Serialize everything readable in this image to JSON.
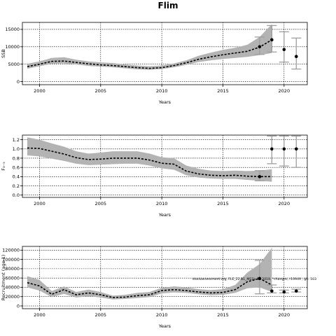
{
  "title": "Flim",
  "note": "stockassessment.org, FLE_22.B1_MS1b-R1 2019, *changes, r10949 , git: 503",
  "chart_data": [
    {
      "type": "line",
      "title": "",
      "xlabel": "Years",
      "ylabel": "SSB",
      "xlim": [
        1998.6,
        2021.9
      ],
      "ylim": [
        -900,
        17000
      ],
      "xticks": [
        2000,
        2005,
        2010,
        2015,
        2020
      ],
      "yticks": [
        0,
        5000,
        10000,
        15000
      ],
      "ytick_labels": [
        "0",
        "5000",
        "10000",
        "15000"
      ],
      "grid": true,
      "x": [
        1999,
        2000,
        2001,
        2002,
        2003,
        2004,
        2005,
        2006,
        2007,
        2008,
        2009,
        2010,
        2011,
        2012,
        2013,
        2014,
        2015,
        2016,
        2017,
        2018,
        2019
      ],
      "estimate": [
        4300,
        5000,
        5800,
        5900,
        5500,
        5100,
        4800,
        4600,
        4300,
        4000,
        3800,
        4000,
        4600,
        5400,
        6400,
        7100,
        7700,
        8200,
        8700,
        9900,
        12000
      ],
      "lower": [
        3700,
        4400,
        5100,
        5200,
        4900,
        4500,
        4300,
        4100,
        3800,
        3500,
        3400,
        3600,
        4100,
        4800,
        5600,
        6100,
        6500,
        6800,
        7100,
        7600,
        8200
      ],
      "upper": [
        5100,
        5800,
        6800,
        7000,
        6300,
        5800,
        5500,
        5300,
        4900,
        4600,
        4400,
        4600,
        5200,
        6100,
        7400,
        8300,
        9100,
        9700,
        10600,
        12800,
        16500
      ],
      "points": [
        {
          "x": 2018,
          "y": 10000,
          "lo": 7800,
          "hi": 12800
        },
        {
          "x": 2019,
          "y": 12000,
          "lo": 8500,
          "hi": 16100
        },
        {
          "x": 2020,
          "y": 9200,
          "lo": 5600,
          "hi": 14300
        },
        {
          "x": 2021,
          "y": 7200,
          "lo": 3600,
          "hi": 12500
        }
      ]
    },
    {
      "type": "line",
      "title": "",
      "xlabel": "Years",
      "ylabel": "F₃₋₅",
      "xlim": [
        1998.6,
        2021.9
      ],
      "ylim": [
        -0.05,
        1.3
      ],
      "xticks": [
        2000,
        2005,
        2010,
        2015,
        2020
      ],
      "yticks": [
        0.0,
        0.2,
        0.4,
        0.6,
        0.8,
        1.0,
        1.2
      ],
      "ytick_labels": [
        "0.0",
        "0.2",
        "0.4",
        "0.6",
        "0.8",
        "1.0",
        "1.2"
      ],
      "grid": true,
      "x": [
        1999,
        2000,
        2001,
        2002,
        2003,
        2004,
        2005,
        2006,
        2007,
        2008,
        2009,
        2010,
        2011,
        2012,
        2013,
        2014,
        2015,
        2016,
        2017,
        2018,
        2019
      ],
      "estimate": [
        1.02,
        1.01,
        0.95,
        0.89,
        0.81,
        0.77,
        0.78,
        0.8,
        0.8,
        0.8,
        0.76,
        0.69,
        0.67,
        0.52,
        0.46,
        0.43,
        0.42,
        0.43,
        0.41,
        0.4,
        0.4
      ],
      "lower": [
        0.86,
        0.84,
        0.79,
        0.74,
        0.68,
        0.65,
        0.66,
        0.67,
        0.68,
        0.68,
        0.64,
        0.58,
        0.55,
        0.43,
        0.38,
        0.36,
        0.35,
        0.35,
        0.33,
        0.31,
        0.29
      ],
      "upper": [
        1.25,
        1.2,
        1.12,
        1.05,
        0.95,
        0.9,
        0.92,
        0.95,
        0.95,
        0.95,
        0.9,
        0.82,
        0.8,
        0.64,
        0.57,
        0.53,
        0.52,
        0.53,
        0.52,
        0.53,
        0.56
      ],
      "points": [
        {
          "x": 2018,
          "y": 0.4,
          "lo": 0.31,
          "hi": 0.53
        },
        {
          "x": 2019,
          "y": 1.0,
          "lo": 0.68,
          "hi": 1.28
        },
        {
          "x": 2020,
          "y": 1.0,
          "lo": 0.63,
          "hi": 1.28
        },
        {
          "x": 2021,
          "y": 1.0,
          "lo": 0.6,
          "hi": 1.28
        }
      ]
    },
    {
      "type": "line",
      "title": "",
      "xlabel": "Years",
      "ylabel": "Recruitment (age 1)",
      "xlim": [
        1998.6,
        2021.9
      ],
      "ylim": [
        -6000,
        128000
      ],
      "xticks": [
        2000,
        2005,
        2010,
        2015,
        2020
      ],
      "yticks": [
        0,
        20000,
        40000,
        60000,
        80000,
        100000,
        120000
      ],
      "ytick_labels": [
        "0",
        "20000",
        "40000",
        "60000",
        "80000",
        "100000",
        "120000"
      ],
      "grid": true,
      "x": [
        1999,
        2000,
        2001,
        2002,
        2003,
        2004,
        2005,
        2006,
        2007,
        2008,
        2009,
        2010,
        2011,
        2012,
        2013,
        2014,
        2015,
        2016,
        2017,
        2018,
        2019
      ],
      "estimate": [
        50000,
        43000,
        25000,
        35000,
        24000,
        28000,
        24000,
        18000,
        19000,
        22000,
        24000,
        33000,
        35000,
        33000,
        30000,
        28000,
        29000,
        35000,
        52000,
        59000,
        45000
      ],
      "lower": [
        40000,
        33000,
        19000,
        26000,
        18000,
        21000,
        18000,
        14000,
        15000,
        17000,
        19000,
        27000,
        29000,
        28000,
        25000,
        23000,
        24000,
        28000,
        38000,
        40000,
        30000
      ],
      "upper": [
        64000,
        56000,
        32000,
        42000,
        30000,
        35000,
        30000,
        22000,
        24000,
        28000,
        30000,
        39000,
        42000,
        40000,
        36000,
        34000,
        36000,
        45000,
        72000,
        90000,
        125000
      ],
      "points": [
        {
          "x": 2018,
          "y": 59000,
          "lo": 26000,
          "hi": 98000
        },
        {
          "x": 2019,
          "y": 32000,
          "lo": 28000,
          "hi": 45000
        },
        {
          "x": 2020,
          "y": 30000,
          "lo": 28000,
          "hi": 34000
        },
        {
          "x": 2021,
          "y": 32000,
          "lo": 30000,
          "hi": 36000
        }
      ]
    }
  ]
}
